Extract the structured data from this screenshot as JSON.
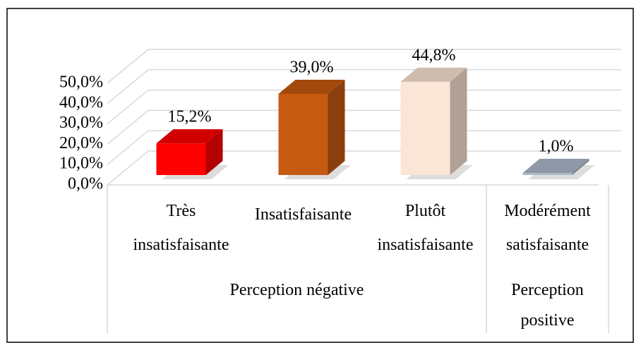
{
  "chart_data": {
    "type": "bar3d",
    "categories": [
      [
        "Très",
        "insatisfaisante"
      ],
      [
        "Insatisfaisante"
      ],
      [
        "Plutôt",
        "insatisfaisante"
      ],
      [
        "Modérément",
        "satisfaisante"
      ]
    ],
    "groups": [
      {
        "name": [
          "Perception négative"
        ],
        "span": 3
      },
      {
        "name": [
          "Perception",
          "positive"
        ],
        "span": 1
      }
    ],
    "values": [
      15.2,
      39.0,
      44.8,
      1.0
    ],
    "value_labels": [
      "15,2%",
      "39,0%",
      "44,8%",
      "1,0%"
    ],
    "colors": [
      "#ff0000",
      "#c55a11",
      "#fbe5d6",
      "#adb9ca"
    ],
    "ylim": [
      0,
      50
    ],
    "yticks": [
      {
        "value": 0,
        "label": "0,0%"
      },
      {
        "value": 10,
        "label": "10,0%"
      },
      {
        "value": 20,
        "label": "20,0%"
      },
      {
        "value": 30,
        "label": "30,0%"
      },
      {
        "value": 40,
        "label": "40,0%"
      },
      {
        "value": 50,
        "label": "50,0%"
      }
    ],
    "grid": true
  }
}
